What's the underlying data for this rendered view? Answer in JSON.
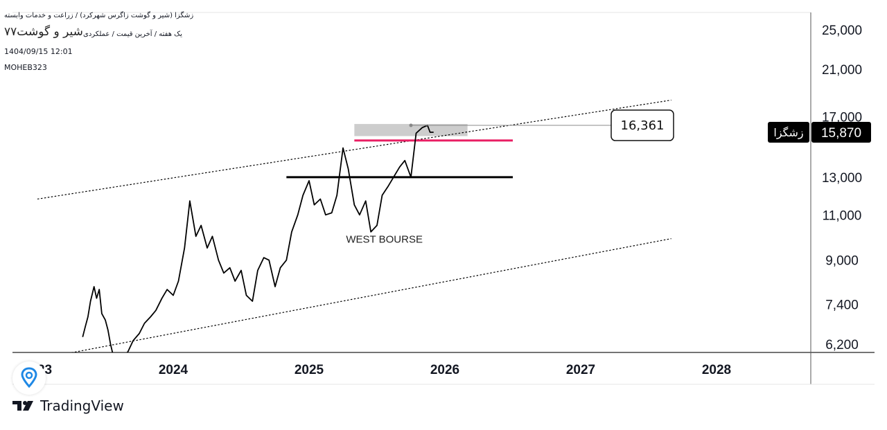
{
  "header": {
    "line1": "زشگزا (شیر و گوشت زاگرس شهرکرد) / زراعت و خدمات وابسته",
    "line2": "۷۷شیر و گوشت",
    "line3": "یک هفته / آخرین قیمت / عملکردی",
    "date": "1404/09/15 12:01",
    "author": "MOHEB323"
  },
  "branding": {
    "logo_text": "TradingView",
    "logo_icon": "tradingview-logo-icon",
    "badge_icon": "location-pin-icon"
  },
  "colors": {
    "price_line": "#000000",
    "support_line": "#000000",
    "resistance_line": "#e91e63",
    "channel_line": "#000000",
    "highlight_box": "#c8c8c8",
    "price_tag_bg": "#000000",
    "axis_text": "#131722",
    "badge_icon": "#1e88e5"
  },
  "chart_data": {
    "type": "line",
    "title": "",
    "xlabel": "",
    "ylabel": "",
    "y_scale": "log",
    "ylim": [
      6000,
      27000
    ],
    "xlim": [
      "2022-12",
      "2028-12"
    ],
    "x_ticks": [
      {
        "label": "2023",
        "x": "2023-01"
      },
      {
        "label": "2024",
        "x": "2024-01"
      },
      {
        "label": "2025",
        "x": "2025-01"
      },
      {
        "label": "2026",
        "x": "2026-01"
      },
      {
        "label": "2027",
        "x": "2027-01"
      },
      {
        "label": "2028",
        "x": "2028-01"
      }
    ],
    "y_ticks": [
      {
        "label": "25,000",
        "value": 25000
      },
      {
        "label": "21,000",
        "value": 21000
      },
      {
        "label": "17,000",
        "value": 17000
      },
      {
        "label": "13,000",
        "value": 13000
      },
      {
        "label": "11,000",
        "value": 11000
      },
      {
        "label": "9,000",
        "value": 9000
      },
      {
        "label": "7,400",
        "value": 7400
      },
      {
        "label": "6,200",
        "value": 6200
      }
    ],
    "series": [
      {
        "x": [
          "2023-05-01",
          "2023-05-08",
          "2023-05-15",
          "2023-05-22",
          "2023-06-01",
          "2023-06-08",
          "2023-06-15",
          "2023-06-22",
          "2023-07-01",
          "2023-07-08",
          "2023-07-15",
          "2023-07-22",
          "2023-08-01",
          "2023-08-08",
          "2023-08-15",
          "2023-09-01",
          "2023-09-15",
          "2023-10-01",
          "2023-10-15",
          "2023-11-01",
          "2023-11-15",
          "2023-12-01",
          "2023-12-15",
          "2024-01-01",
          "2024-01-15",
          "2024-02-01",
          "2024-02-15",
          "2024-03-01",
          "2024-03-15",
          "2024-04-01",
          "2024-04-15",
          "2024-05-01",
          "2024-05-15",
          "2024-06-01",
          "2024-06-15",
          "2024-07-01",
          "2024-07-15",
          "2024-08-01",
          "2024-08-15",
          "2024-09-01",
          "2024-09-15",
          "2024-10-01",
          "2024-10-15",
          "2024-11-01",
          "2024-11-15",
          "2024-12-01",
          "2024-12-15",
          "2025-01-01",
          "2025-01-15",
          "2025-02-01",
          "2025-02-15",
          "2025-03-01",
          "2025-03-15",
          "2025-04-01",
          "2025-04-15",
          "2025-05-01",
          "2025-05-15",
          "2025-06-01",
          "2025-06-15",
          "2025-07-01",
          "2025-07-15",
          "2025-08-01",
          "2025-08-15",
          "2025-09-01",
          "2025-09-15",
          "2025-10-01",
          "2025-10-15",
          "2025-11-01",
          "2025-11-15",
          "2025-11-22",
          "2025-12-01"
        ],
        "values": [
          6400,
          6700,
          7000,
          7500,
          8000,
          7600,
          7900,
          7100,
          6900,
          6600,
          6200,
          5900,
          5700,
          5600,
          5800,
          6000,
          6300,
          6500,
          6800,
          7000,
          7200,
          7600,
          7900,
          7700,
          8200,
          9500,
          11700,
          10000,
          10500,
          9500,
          10000,
          9000,
          8500,
          8700,
          8200,
          8600,
          7700,
          7500,
          8600,
          9100,
          9000,
          8000,
          8700,
          9000,
          10200,
          11000,
          12000,
          12800,
          11500,
          11800,
          11000,
          11100,
          12000,
          14800,
          13500,
          11500,
          11000,
          11700,
          10200,
          10500,
          12000,
          12500,
          13000,
          13600,
          14000,
          13000,
          15800,
          16200,
          16361,
          15870,
          15870
        ],
        "last_value": 15870,
        "last_label": "15,870",
        "symbol_tag": "زشگزا"
      }
    ],
    "drawings": {
      "channel_upper": {
        "start": [
          "2023-01",
          11800
        ],
        "end": [
          "2027-09",
          18300
        ],
        "style": "dotted"
      },
      "channel_lower": {
        "start": [
          "2023-01",
          5800
        ],
        "end": [
          "2027-09",
          9900
        ],
        "style": "dotted"
      },
      "support_line": {
        "value": 13000,
        "from": "2024-11",
        "to": "2026-07",
        "color": "#000000"
      },
      "resistance_line": {
        "value": 15300,
        "from": "2025-05",
        "to": "2026-07",
        "color": "#e91e63"
      },
      "highlight_box": {
        "from": "2025-05",
        "to": "2026-03",
        "low": 15600,
        "high": 16361
      },
      "callout": {
        "text": "16,361",
        "value": 16361,
        "anchor_x": "2025-10"
      },
      "annotation": {
        "text": "WEST BOURSE",
        "x": "2025-09",
        "value": 9900
      }
    }
  }
}
